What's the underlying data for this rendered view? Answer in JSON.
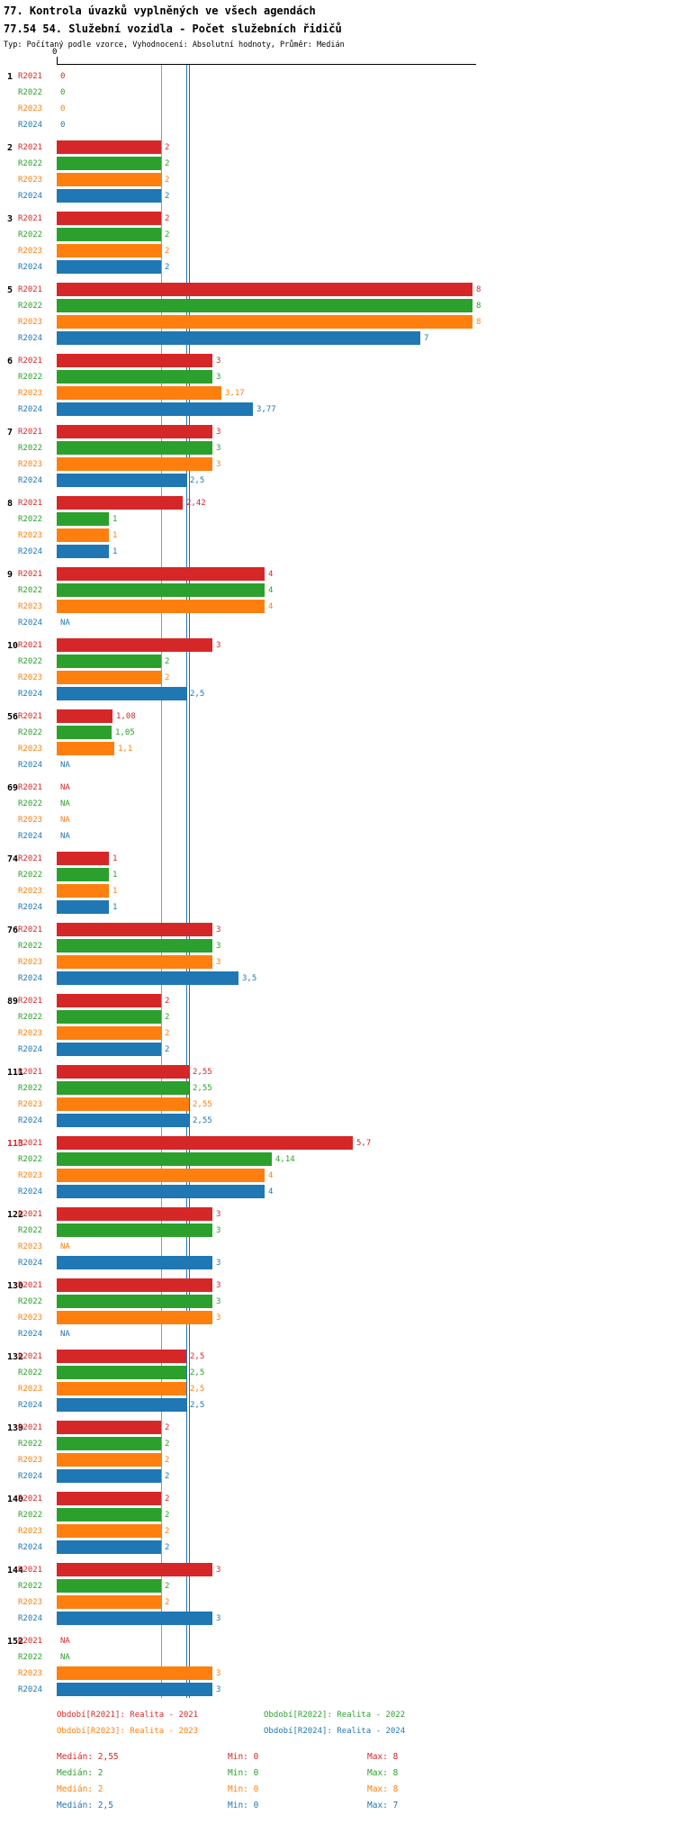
{
  "header": {
    "title1": "77. Kontrola úvazků vyplněných ve všech agendách",
    "title2": "77.54 54. Služební vozidla - Počet služebních řidičů",
    "meta": "Typ: Počítaný podle vzorce, Vyhodnocení: Absolutní hodnoty, Průměr: Medián"
  },
  "colors": {
    "R2021": "#d62728",
    "R2022": "#2ca02c",
    "R2023": "#ff7f0e",
    "R2024": "#1f77b4"
  },
  "chart_data": {
    "type": "bar",
    "orientation": "horizontal",
    "title": "77.54 54. Služební vozidla - Počet služebních řidičů",
    "axis": {
      "zero_label": "0",
      "x_min": 0,
      "x_max": 8,
      "grid": false
    },
    "series_names": [
      "R2021",
      "R2022",
      "R2023",
      "R2024"
    ],
    "groups": [
      {
        "id": "1",
        "highlight": false,
        "values": [
          0,
          0,
          0,
          0
        ],
        "labels": [
          "0",
          "0",
          "0",
          "0"
        ]
      },
      {
        "id": "2",
        "highlight": false,
        "values": [
          2,
          2,
          2,
          2
        ],
        "labels": [
          "2",
          "2",
          "2",
          "2"
        ]
      },
      {
        "id": "3",
        "highlight": false,
        "values": [
          2,
          2,
          2,
          2
        ],
        "labels": [
          "2",
          "2",
          "2",
          "2"
        ]
      },
      {
        "id": "5",
        "highlight": false,
        "values": [
          8,
          8,
          8,
          7
        ],
        "labels": [
          "8",
          "8",
          "8",
          "7"
        ]
      },
      {
        "id": "6",
        "highlight": false,
        "values": [
          3,
          3,
          3.17,
          3.77
        ],
        "labels": [
          "3",
          "3",
          "3,17",
          "3,77"
        ]
      },
      {
        "id": "7",
        "highlight": false,
        "values": [
          3,
          3,
          3,
          2.5
        ],
        "labels": [
          "3",
          "3",
          "3",
          "2,5"
        ]
      },
      {
        "id": "8",
        "highlight": false,
        "values": [
          2.42,
          1,
          1,
          1
        ],
        "labels": [
          "2,42",
          "1",
          "1",
          "1"
        ]
      },
      {
        "id": "9",
        "highlight": false,
        "values": [
          4,
          4,
          4,
          null
        ],
        "labels": [
          "4",
          "4",
          "4",
          "NA"
        ]
      },
      {
        "id": "10",
        "highlight": false,
        "values": [
          3,
          2,
          2,
          2.5
        ],
        "labels": [
          "3",
          "2",
          "2",
          "2,5"
        ]
      },
      {
        "id": "56",
        "highlight": false,
        "values": [
          1.08,
          1.05,
          1.1,
          null
        ],
        "labels": [
          "1,08",
          "1,05",
          "1,1",
          "NA"
        ]
      },
      {
        "id": "69",
        "highlight": false,
        "values": [
          null,
          null,
          null,
          null
        ],
        "labels": [
          "NA",
          "NA",
          "NA",
          "NA"
        ]
      },
      {
        "id": "74",
        "highlight": false,
        "values": [
          1,
          1,
          1,
          1
        ],
        "labels": [
          "1",
          "1",
          "1",
          "1"
        ]
      },
      {
        "id": "76",
        "highlight": false,
        "values": [
          3,
          3,
          3,
          3.5
        ],
        "labels": [
          "3",
          "3",
          "3",
          "3,5"
        ]
      },
      {
        "id": "89",
        "highlight": false,
        "values": [
          2,
          2,
          2,
          2
        ],
        "labels": [
          "2",
          "2",
          "2",
          "2"
        ]
      },
      {
        "id": "111",
        "highlight": false,
        "values": [
          2.55,
          2.55,
          2.55,
          2.55
        ],
        "labels": [
          "2,55",
          "2,55",
          "2,55",
          "2,55"
        ]
      },
      {
        "id": "113",
        "highlight": true,
        "values": [
          5.7,
          4.14,
          4,
          4
        ],
        "labels": [
          "5,7",
          "4,14",
          "4",
          "4"
        ]
      },
      {
        "id": "122",
        "highlight": false,
        "values": [
          3,
          3,
          null,
          3
        ],
        "labels": [
          "3",
          "3",
          "NA",
          "3"
        ]
      },
      {
        "id": "130",
        "highlight": false,
        "values": [
          3,
          3,
          3,
          null
        ],
        "labels": [
          "3",
          "3",
          "3",
          "NA"
        ]
      },
      {
        "id": "132",
        "highlight": false,
        "values": [
          2.5,
          2.5,
          2.5,
          2.5
        ],
        "labels": [
          "2,5",
          "2,5",
          "2,5",
          "2,5"
        ]
      },
      {
        "id": "139",
        "highlight": false,
        "values": [
          2,
          2,
          2,
          2
        ],
        "labels": [
          "2",
          "2",
          "2",
          "2"
        ]
      },
      {
        "id": "140",
        "highlight": false,
        "values": [
          2,
          2,
          2,
          2
        ],
        "labels": [
          "2",
          "2",
          "2",
          "2"
        ]
      },
      {
        "id": "144",
        "highlight": false,
        "values": [
          3,
          2,
          2,
          3
        ],
        "labels": [
          "3",
          "2",
          "2",
          "3"
        ]
      },
      {
        "id": "152",
        "highlight": false,
        "values": [
          null,
          null,
          3,
          3
        ],
        "labels": [
          "NA",
          "NA",
          "3",
          "3"
        ]
      }
    ],
    "medians": [
      {
        "series": "R2022",
        "value": 2
      },
      {
        "series": "R2023",
        "value": 2
      },
      {
        "series": "R2024",
        "value": 2.5
      },
      {
        "series": "R2021",
        "value": 2.55
      }
    ]
  },
  "legend": [
    {
      "series": "R2021",
      "label": "Období[R2021]: Realita - 2021"
    },
    {
      "series": "R2022",
      "label": "Období[R2022]: Realita - 2022"
    },
    {
      "series": "R2023",
      "label": "Období[R2023]: Realita - 2023"
    },
    {
      "series": "R2024",
      "label": "Období[R2024]: Realita - 2024"
    }
  ],
  "stats": [
    {
      "series": "R2021",
      "median": "Medián: 2,55",
      "min": "Min: 0",
      "max": "Max: 8"
    },
    {
      "series": "R2022",
      "median": "Medián: 2",
      "min": "Min: 0",
      "max": "Max: 8"
    },
    {
      "series": "R2023",
      "median": "Medián: 2",
      "min": "Min: 0",
      "max": "Max: 8"
    },
    {
      "series": "R2024",
      "median": "Medián: 2,5",
      "min": "Min: 0",
      "max": "Max: 7"
    }
  ]
}
